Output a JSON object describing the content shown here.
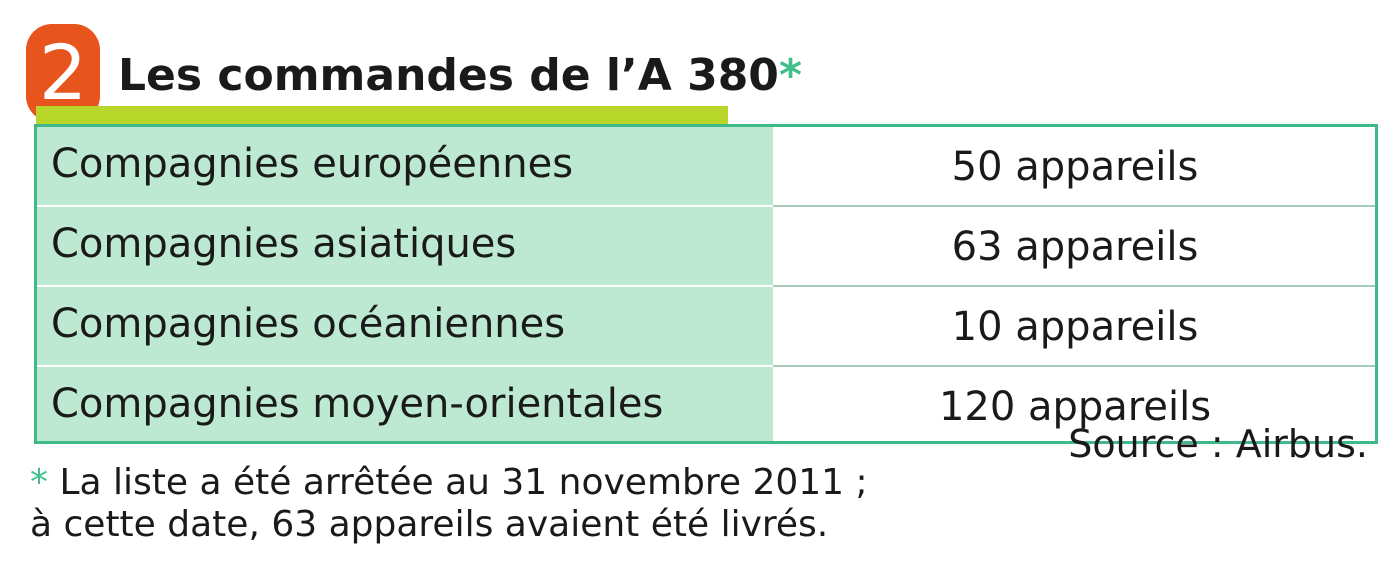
{
  "header": {
    "badge_number": "2",
    "title": "Les commandes de l’A 380",
    "title_marker": "*"
  },
  "table": {
    "rows": [
      {
        "label": "Compagnies européennes",
        "value": "50 appareils"
      },
      {
        "label": "Compagnies asiatiques",
        "value": "63 appareils"
      },
      {
        "label": "Compagnies océaniennes",
        "value": "10 appareils"
      },
      {
        "label": "Compagnies moyen-orientales",
        "value": "120 appareils"
      }
    ]
  },
  "source": "Source : Airbus.",
  "footnote": {
    "marker": "*",
    "line1": " La liste a été arrêtée au 31 novembre 2011 ;",
    "line2": "à cette date, 63 appareils avaient été livrés."
  },
  "colors": {
    "badge": "#e8541e",
    "underline": "#b9d62b",
    "accent_green": "#3fbf8a",
    "label_column_bg": "#bde8d2",
    "table_border": "#3fb88a"
  }
}
